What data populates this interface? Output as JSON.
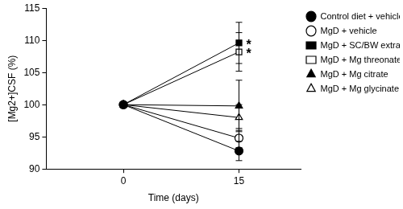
{
  "chart_data": {
    "type": "line",
    "x_label": "Time (days)",
    "y_label": "[Mg2+]CSF (%)",
    "x": [
      0,
      15
    ],
    "xlim": [
      -10,
      23
    ],
    "xticks": [
      0,
      15
    ],
    "ylim": [
      90,
      115
    ],
    "yticks": [
      90,
      95,
      100,
      105,
      110,
      115
    ],
    "grid": false,
    "legend": "right",
    "series": [
      {
        "name": "Control diet + vehicle",
        "color": "#000000",
        "marker": "circle",
        "line_style": "solid",
        "values": [
          100,
          92.8
        ],
        "errors": [
          null,
          1.5
        ]
      },
      {
        "name": "MgD + vehicle",
        "color": "#000000",
        "marker": "circle-open",
        "line_style": "solid",
        "values": [
          100,
          94.8
        ],
        "errors": [
          null,
          1.5
        ]
      },
      {
        "name": "MgD + SC/BW extract",
        "color": "#000000",
        "marker": "square",
        "line_style": "solid",
        "values": [
          100,
          109.6
        ],
        "errors": [
          null,
          3.2
        ],
        "annotation": "*"
      },
      {
        "name": "MgD + Mg threonate",
        "color": "#000000",
        "marker": "square-open",
        "line_style": "solid",
        "values": [
          100,
          108.2
        ],
        "errors": [
          null,
          3.0
        ],
        "annotation": "*"
      },
      {
        "name": "MgD + Mg citrate",
        "color": "#000000",
        "marker": "triangle",
        "line_style": "solid",
        "values": [
          100,
          99.8
        ],
        "errors": [
          null,
          4.0
        ]
      },
      {
        "name": "MgD + Mg glycinate",
        "color": "#000000",
        "marker": "triangle-open",
        "line_style": "solid",
        "values": [
          100,
          98.0
        ],
        "errors": [
          null,
          2.0
        ]
      }
    ]
  }
}
